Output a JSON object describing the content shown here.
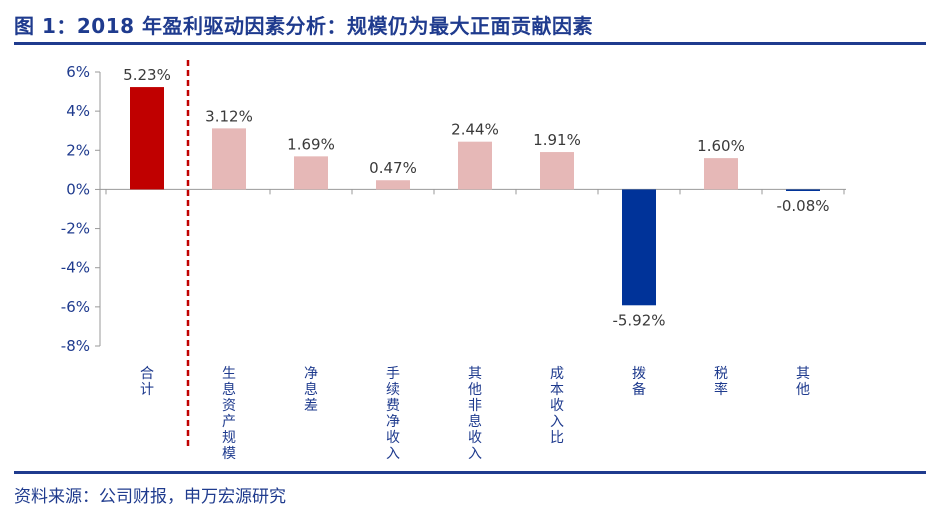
{
  "header": {
    "title": "图 1：2018 年盈利驱动因素分析：规模仍为最大正面贡献因素"
  },
  "footer": {
    "source": "资料来源：公司财报，申万宏源研究"
  },
  "colors": {
    "brand": "#1f3b8e",
    "total": "#c00000",
    "positive": "#e6b8b7",
    "negative": "#003399",
    "divider": "#c00000"
  },
  "chart_data": {
    "type": "bar",
    "title": "",
    "xlabel": "",
    "ylabel": "",
    "ylim": [
      -8,
      6
    ],
    "yticks": [
      6,
      4,
      2,
      0,
      -2,
      -4,
      -6,
      -8
    ],
    "ytick_labels": [
      "6%",
      "4%",
      "2%",
      "0%",
      "-2%",
      "-4%",
      "-6%",
      "-8%"
    ],
    "categories": [
      "合计",
      "生息资产规模",
      "净息差",
      "手续费净收入",
      "其他非息收入",
      "成本收入比",
      "拨备",
      "税率",
      "其他"
    ],
    "values": [
      5.23,
      3.12,
      1.69,
      0.47,
      2.44,
      1.91,
      -5.92,
      1.6,
      -0.08
    ],
    "value_labels": [
      "5.23%",
      "3.12%",
      "1.69%",
      "0.47%",
      "2.44%",
      "1.91%",
      "-5.92%",
      "1.60%",
      "-0.08%"
    ],
    "grid": false,
    "legend": "none"
  }
}
